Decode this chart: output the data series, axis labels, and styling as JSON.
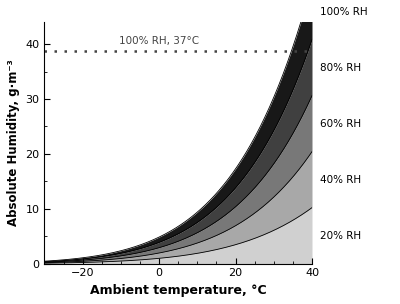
{
  "temp_min": -30,
  "temp_max": 40,
  "rh_levels": [
    20,
    40,
    60,
    80,
    100
  ],
  "rh_labels": [
    "20% RH",
    "40% RH",
    "60% RH",
    "80% RH",
    "100% RH"
  ],
  "fill_colors": [
    "#d0d0d0",
    "#a8a8a8",
    "#787878",
    "#404040",
    "#181818"
  ],
  "line_color": "#000000",
  "dotted_line_y": 38.84,
  "dotted_line_label": "100% RH, 37°C",
  "dotted_line_color": "#444444",
  "ylabel": "Absolute Humidity, g·m⁻³",
  "xlabel": "Ambient temperature, °C",
  "ylim": [
    0,
    44
  ],
  "xlim": [
    -30,
    40
  ],
  "xticks": [
    -20,
    0,
    20,
    40
  ],
  "yticks": [
    0,
    10,
    20,
    30,
    40
  ],
  "bg_color": "#ffffff",
  "figsize": [
    4.0,
    3.04
  ],
  "dpi": 100
}
